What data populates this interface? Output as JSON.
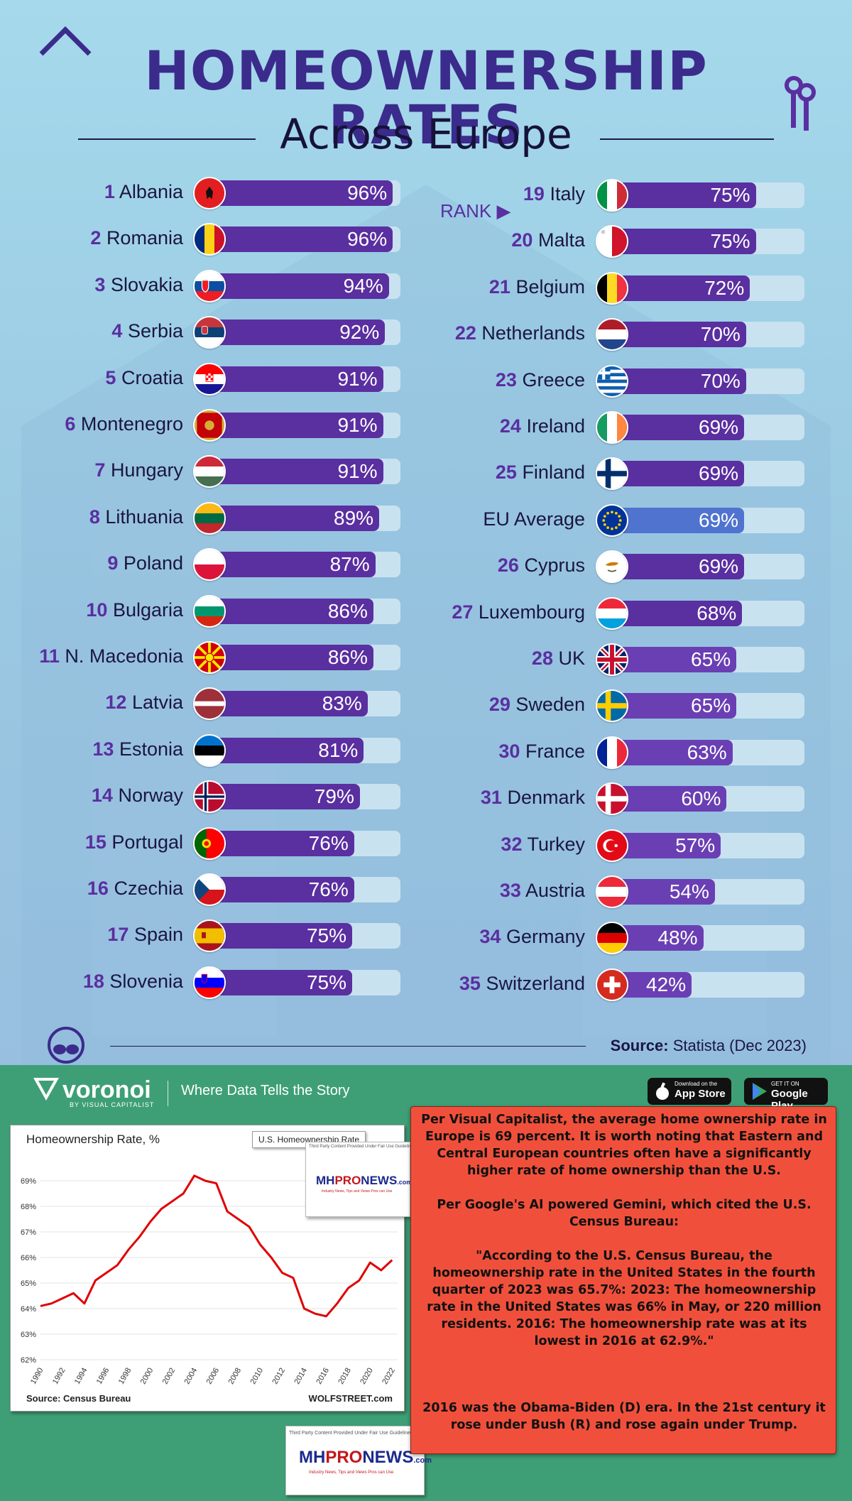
{
  "chart_data": {
    "type": "bar",
    "title": "HOMEOWNERSHIP RATES",
    "subtitle": "Across Europe",
    "rank_indicator": "RANK",
    "source_label": "Source:",
    "source_value": "Statista (Dec 2023)",
    "unit": "%",
    "xlim": [
      0,
      100
    ],
    "series": [
      {
        "name": "Left column",
        "items": [
          {
            "rank": "1",
            "country": "Albania",
            "value": 96,
            "label": "96%",
            "flag": "albania-flag-icon"
          },
          {
            "rank": "2",
            "country": "Romania",
            "value": 96,
            "label": "96%",
            "flag": "romania-flag-icon"
          },
          {
            "rank": "3",
            "country": "Slovakia",
            "value": 94,
            "label": "94%",
            "flag": "slovakia-flag-icon"
          },
          {
            "rank": "4",
            "country": "Serbia",
            "value": 92,
            "label": "92%",
            "flag": "serbia-flag-icon"
          },
          {
            "rank": "5",
            "country": "Croatia",
            "value": 91,
            "label": "91%",
            "flag": "croatia-flag-icon"
          },
          {
            "rank": "6",
            "country": "Montenegro",
            "value": 91,
            "label": "91%",
            "flag": "montenegro-flag-icon"
          },
          {
            "rank": "7",
            "country": "Hungary",
            "value": 91,
            "label": "91%",
            "flag": "hungary-flag-icon"
          },
          {
            "rank": "8",
            "country": "Lithuania",
            "value": 89,
            "label": "89%",
            "flag": "lithuania-flag-icon"
          },
          {
            "rank": "9",
            "country": "Poland",
            "value": 87,
            "label": "87%",
            "flag": "poland-flag-icon"
          },
          {
            "rank": "10",
            "country": "Bulgaria",
            "value": 86,
            "label": "86%",
            "flag": "bulgaria-flag-icon"
          },
          {
            "rank": "11",
            "country": "N. Macedonia",
            "value": 86,
            "label": "86%",
            "flag": "north-macedonia-flag-icon"
          },
          {
            "rank": "12",
            "country": "Latvia",
            "value": 83,
            "label": "83%",
            "flag": "latvia-flag-icon"
          },
          {
            "rank": "13",
            "country": "Estonia",
            "value": 81,
            "label": "81%",
            "flag": "estonia-flag-icon"
          },
          {
            "rank": "14",
            "country": "Norway",
            "value": 79,
            "label": "79%",
            "flag": "norway-flag-icon"
          },
          {
            "rank": "15",
            "country": "Portugal",
            "value": 76,
            "label": "76%",
            "flag": "portugal-flag-icon"
          },
          {
            "rank": "16",
            "country": "Czechia",
            "value": 76,
            "label": "76%",
            "flag": "czechia-flag-icon"
          },
          {
            "rank": "17",
            "country": "Spain",
            "value": 75,
            "label": "75%",
            "flag": "spain-flag-icon"
          },
          {
            "rank": "18",
            "country": "Slovenia",
            "value": 75,
            "label": "75%",
            "flag": "slovenia-flag-icon"
          }
        ]
      },
      {
        "name": "Right column",
        "items": [
          {
            "rank": "19",
            "country": "Italy",
            "value": 75,
            "label": "75%",
            "flag": "italy-flag-icon"
          },
          {
            "rank": "20",
            "country": "Malta",
            "value": 75,
            "label": "75%",
            "flag": "malta-flag-icon"
          },
          {
            "rank": "21",
            "country": "Belgium",
            "value": 72,
            "label": "72%",
            "flag": "belgium-flag-icon"
          },
          {
            "rank": "22",
            "country": "Netherlands",
            "value": 70,
            "label": "70%",
            "flag": "netherlands-flag-icon"
          },
          {
            "rank": "23",
            "country": "Greece",
            "value": 70,
            "label": "70%",
            "flag": "greece-flag-icon"
          },
          {
            "rank": "24",
            "country": "Ireland",
            "value": 69,
            "label": "69%",
            "flag": "ireland-flag-icon"
          },
          {
            "rank": "25",
            "country": "Finland",
            "value": 69,
            "label": "69%",
            "flag": "finland-flag-icon"
          },
          {
            "rank": "",
            "country": "EU Average",
            "value": 69,
            "label": "69%",
            "flag": "eu-flag-icon",
            "highlight": true
          },
          {
            "rank": "26",
            "country": "Cyprus",
            "value": 69,
            "label": "69%",
            "flag": "cyprus-flag-icon"
          },
          {
            "rank": "27",
            "country": "Luxembourg",
            "value": 68,
            "label": "68%",
            "flag": "luxembourg-flag-icon"
          },
          {
            "rank": "28",
            "country": "UK",
            "value": 65,
            "label": "65%",
            "flag": "uk-flag-icon"
          },
          {
            "rank": "29",
            "country": "Sweden",
            "value": 65,
            "label": "65%",
            "flag": "sweden-flag-icon"
          },
          {
            "rank": "30",
            "country": "France",
            "value": 63,
            "label": "63%",
            "flag": "france-flag-icon"
          },
          {
            "rank": "31",
            "country": "Denmark",
            "value": 60,
            "label": "60%",
            "flag": "denmark-flag-icon"
          },
          {
            "rank": "32",
            "country": "Turkey",
            "value": 57,
            "label": "57%",
            "flag": "turkey-flag-icon"
          },
          {
            "rank": "33",
            "country": "Austria",
            "value": 54,
            "label": "54%",
            "flag": "austria-flag-icon"
          },
          {
            "rank": "34",
            "country": "Germany",
            "value": 48,
            "label": "48%",
            "flag": "germany-flag-icon"
          },
          {
            "rank": "35",
            "country": "Switzerland",
            "value": 42,
            "label": "42%",
            "flag": "switzerland-flag-icon"
          }
        ]
      }
    ]
  },
  "us_chart": {
    "type": "line",
    "title": "Homeownership  Rate, %",
    "legend": "U.S. Homeownership Rate",
    "source": "Source: Census Bureau",
    "credit": "WOLFSTREET.com",
    "ylim": [
      62,
      69.5
    ],
    "yticks": [
      "62%",
      "63%",
      "64%",
      "65%",
      "66%",
      "67%",
      "68%",
      "69%"
    ],
    "xticks": [
      "1990",
      "1992",
      "1994",
      "1996",
      "1998",
      "2000",
      "2002",
      "2004",
      "2006",
      "2008",
      "2010",
      "2012",
      "2014",
      "2016",
      "2018",
      "2020",
      "2022"
    ],
    "x": [
      1990,
      1991,
      1992,
      1993,
      1994,
      1995,
      1996,
      1997,
      1998,
      1999,
      2000,
      2001,
      2002,
      2003,
      2004,
      2005,
      2006,
      2007,
      2008,
      2009,
      2010,
      2011,
      2012,
      2013,
      2014,
      2015,
      2016,
      2017,
      2018,
      2019,
      2020,
      2021,
      2022
    ],
    "values": [
      64.1,
      64.2,
      64.4,
      64.6,
      64.2,
      65.1,
      65.4,
      65.7,
      66.3,
      66.8,
      67.4,
      67.9,
      68.2,
      68.5,
      69.2,
      69.0,
      68.9,
      67.8,
      67.5,
      67.2,
      66.5,
      66.0,
      65.4,
      65.2,
      64.0,
      63.8,
      63.7,
      64.2,
      64.8,
      65.1,
      65.8,
      65.5,
      65.9
    ]
  },
  "footer": {
    "brand": "voronoi",
    "byline": "BY VISUAL CAPITALIST",
    "tagline": "Where Data Tells the Story",
    "app_store_small": "Download on the",
    "app_store": "App Store",
    "google_play_small": "GET IT ON",
    "google_play": "Google Play"
  },
  "watermark": {
    "notice": "Third Party Content Provided Under Fair Use Guidelines."
  },
  "commentary": {
    "p1": "Per Visual Capitalist, the average home ownership rate in Europe is 69 percent. It is worth noting that Eastern and Central European countries often have a significantly higher rate of home ownership than the U.S.",
    "p2": "Per Google's AI powered Gemini, which cited the U.S. Census Bureau:",
    "p3": "\"According to the U.S. Census Bureau, the homeownership rate in the United States in the fourth quarter of 2023 was 65.7%: 2023: The homeownership rate in the United States was 66% in May, or 220 million residents. 2016: The homeownership rate was at its lowest in 2016 at 62.9%.\"",
    "p4": "2016 was the Obama-Biden (D) era. In the 21st century it rose under Bush (R) and rose again under Trump."
  }
}
